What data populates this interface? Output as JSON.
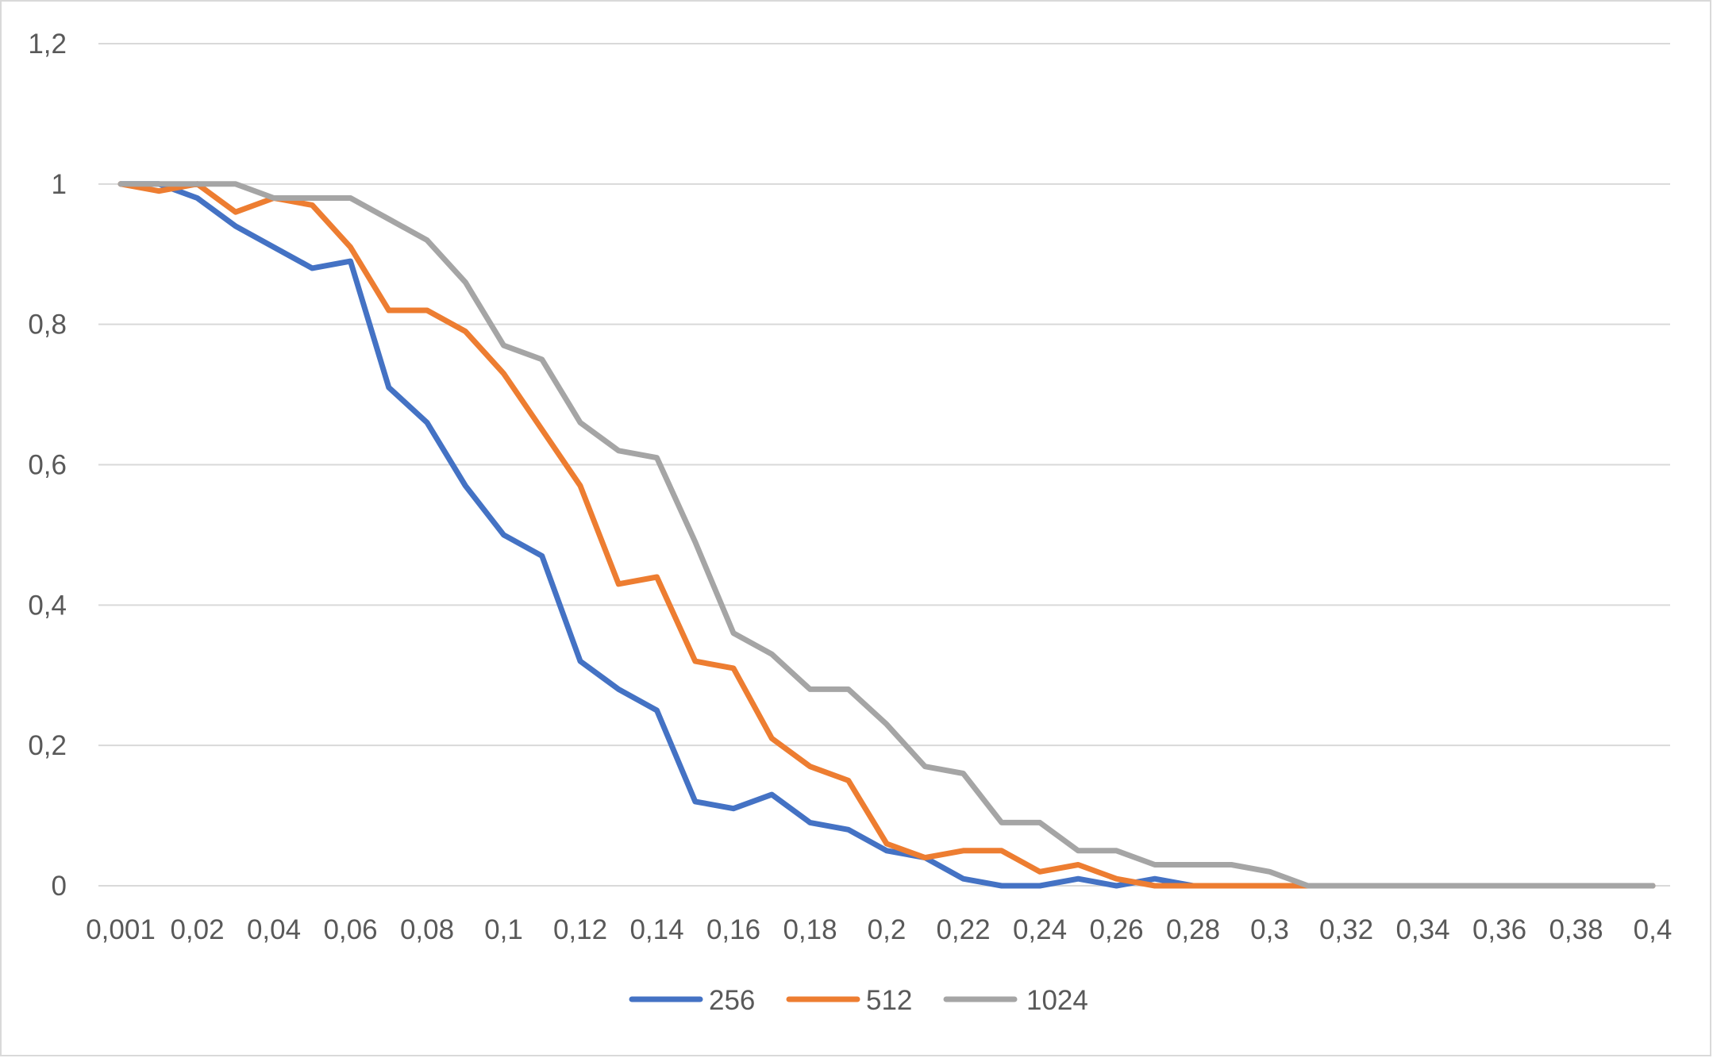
{
  "chart_data": {
    "type": "line",
    "title": "",
    "xlabel": "",
    "ylabel": "",
    "x": [
      "0,001",
      "0,01",
      "0,02",
      "0,03",
      "0,04",
      "0,05",
      "0,06",
      "0,07",
      "0,08",
      "0,09",
      "0,1",
      "0,11",
      "0,12",
      "0,13",
      "0,14",
      "0,15",
      "0,16",
      "0,17",
      "0,18",
      "0,19",
      "0,2",
      "0,21",
      "0,22",
      "0,23",
      "0,24",
      "0,25",
      "0,26",
      "0,27",
      "0,28",
      "0,29",
      "0,3",
      "0,31",
      "0,32",
      "0,33",
      "0,34",
      "0,35",
      "0,36",
      "0,37",
      "0,38",
      "0,39",
      "0,4"
    ],
    "x_tick_labels": [
      "0,001",
      "0,02",
      "0,04",
      "0,06",
      "0,08",
      "0,1",
      "0,12",
      "0,14",
      "0,16",
      "0,18",
      "0,2",
      "0,22",
      "0,24",
      "0,26",
      "0,28",
      "0,3",
      "0,32",
      "0,34",
      "0,36",
      "0,38",
      "0,4"
    ],
    "y_tick_labels": [
      "0",
      "0,2",
      "0,4",
      "0,6",
      "0,8",
      "1",
      "1,2"
    ],
    "ylim": [
      0,
      1.2
    ],
    "grid": true,
    "legend_position": "bottom",
    "series": [
      {
        "name": "256",
        "color": "#4472C4",
        "values": [
          1,
          1,
          0.98,
          0.94,
          0.91,
          0.88,
          0.89,
          0.71,
          0.66,
          0.57,
          0.5,
          0.47,
          0.32,
          0.28,
          0.25,
          0.12,
          0.11,
          0.13,
          0.09,
          0.08,
          0.05,
          0.04,
          0.01,
          0,
          0,
          0.01,
          0,
          0.01,
          0,
          0,
          0,
          0,
          0,
          0,
          0,
          0,
          0,
          0,
          0,
          0,
          0
        ]
      },
      {
        "name": "512",
        "color": "#ED7D31",
        "values": [
          1,
          0.99,
          1,
          0.96,
          0.98,
          0.97,
          0.91,
          0.82,
          0.82,
          0.79,
          0.73,
          0.65,
          0.57,
          0.43,
          0.44,
          0.32,
          0.31,
          0.21,
          0.17,
          0.15,
          0.06,
          0.04,
          0.05,
          0.05,
          0.02,
          0.03,
          0.01,
          0,
          0,
          0,
          0,
          0,
          0,
          0,
          0,
          0,
          0,
          0,
          0,
          0,
          0
        ]
      },
      {
        "name": "1024",
        "color": "#A5A5A5",
        "values": [
          1,
          1,
          1,
          1,
          0.98,
          0.98,
          0.98,
          0.95,
          0.92,
          0.86,
          0.77,
          0.75,
          0.66,
          0.62,
          0.61,
          0.49,
          0.36,
          0.33,
          0.28,
          0.28,
          0.23,
          0.17,
          0.16,
          0.09,
          0.09,
          0.05,
          0.05,
          0.03,
          0.03,
          0.03,
          0.02,
          0,
          0,
          0,
          0,
          0,
          0,
          0,
          0,
          0,
          0
        ]
      }
    ]
  }
}
